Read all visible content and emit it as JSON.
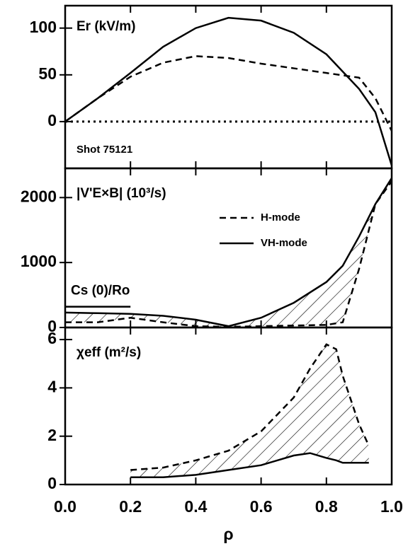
{
  "chart_data": [
    {
      "type": "line",
      "title": "Er (kV/m)",
      "annotation": "Shot 75121",
      "x": [
        0,
        0.1,
        0.2,
        0.3,
        0.4,
        0.5,
        0.6,
        0.7,
        0.8,
        0.9,
        0.95,
        1.0
      ],
      "series": [
        {
          "style": "dashed",
          "color": "#000",
          "values": [
            0,
            25,
            48,
            63,
            70,
            68,
            62,
            57,
            52,
            47,
            25,
            -10
          ]
        },
        {
          "style": "solid",
          "color": "#000",
          "values": [
            0,
            25,
            52,
            80,
            100,
            111,
            108,
            95,
            72,
            35,
            10,
            -47
          ]
        },
        {
          "style": "dotted",
          "color": "#000",
          "values": [
            0,
            0,
            0,
            0,
            0,
            0,
            0,
            0,
            0,
            0,
            0,
            0
          ]
        }
      ],
      "xlim": [
        0,
        1
      ],
      "xticks": [
        0.2,
        0.4,
        0.6,
        0.8
      ],
      "ylim": [
        -50,
        124
      ],
      "yticks": [
        0,
        50,
        100
      ]
    },
    {
      "type": "line",
      "title": "|V'E×B| (10³/s)",
      "annotation": "Cs (0)/Ro",
      "hatch": true,
      "x": [
        0,
        0.1,
        0.2,
        0.3,
        0.4,
        0.5,
        0.6,
        0.7,
        0.8,
        0.85,
        0.9,
        0.95,
        1.0
      ],
      "series": [
        {
          "name": "H-mode",
          "style": "dashed",
          "color": "#000",
          "values": [
            80,
            80,
            150,
            80,
            20,
            10,
            20,
            30,
            40,
            80,
            900,
            1900,
            2250
          ]
        },
        {
          "name": "VH-mode",
          "style": "solid",
          "color": "#000",
          "values": [
            230,
            220,
            210,
            180,
            120,
            20,
            150,
            380,
            700,
            950,
            1400,
            1900,
            2300
          ]
        },
        {
          "style": "solid",
          "color": "#000",
          "values": [
            320,
            320,
            320,
            null,
            null,
            null,
            null,
            null,
            null,
            null,
            null,
            null,
            null
          ]
        }
      ],
      "xlim": [
        0,
        1
      ],
      "xticks": [
        0.2,
        0.4,
        0.6,
        0.8
      ],
      "ylim": [
        0,
        2450
      ],
      "yticks": [
        0,
        1000,
        2000
      ]
    },
    {
      "type": "line",
      "title": "χeff (m²/s)",
      "hatch": true,
      "xlabel": "ρ",
      "x": [
        0.2,
        0.3,
        0.4,
        0.5,
        0.6,
        0.7,
        0.75,
        0.8,
        0.83,
        0.85,
        0.9,
        0.93
      ],
      "series": [
        {
          "style": "dashed",
          "color": "#000",
          "values": [
            0.6,
            0.7,
            1.0,
            1.4,
            2.2,
            3.6,
            4.8,
            5.8,
            5.6,
            4.5,
            2.5,
            1.6
          ]
        },
        {
          "style": "solid",
          "color": "#000",
          "values": [
            0.3,
            0.3,
            0.4,
            0.6,
            0.8,
            1.2,
            1.3,
            1.1,
            1.0,
            0.9,
            0.9,
            0.9
          ]
        }
      ],
      "xlim": [
        0,
        1
      ],
      "xticks": [
        {
          "value": 0,
          "label": "0.0"
        },
        0.2,
        0.4,
        0.6,
        0.8,
        {
          "value": 1,
          "label": "1.0"
        }
      ],
      "ylim": [
        0,
        6.5
      ],
      "yticks": [
        0,
        2,
        4,
        6
      ]
    }
  ]
}
